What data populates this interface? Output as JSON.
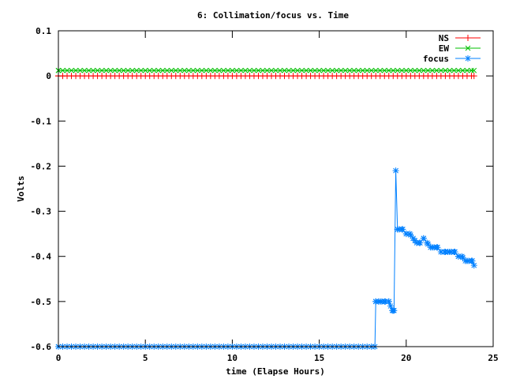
{
  "chart_data": {
    "type": "line",
    "title": "6: Collimation/focus vs. Time",
    "xlabel": "time (Elapse Hours)",
    "ylabel": "Volts",
    "xlim": [
      0,
      25
    ],
    "ylim": [
      -0.6,
      0.1
    ],
    "xticks": [
      0,
      5,
      10,
      15,
      20,
      25
    ],
    "yticks": [
      0.1,
      0,
      -0.1,
      -0.2,
      -0.3,
      -0.4,
      -0.5,
      -0.6
    ],
    "legend_position": "top-right",
    "grid": false,
    "series": [
      {
        "name": "NS",
        "color": "#ff0000",
        "marker": "plus",
        "x": [
          0,
          23.9
        ],
        "y": [
          0.0,
          0.0
        ],
        "sample_interval": 0.25
      },
      {
        "name": "EW",
        "color": "#00c000",
        "marker": "cross",
        "x": [
          0,
          23.9
        ],
        "y": [
          0.012,
          0.012
        ],
        "sample_interval": 0.25
      },
      {
        "name": "focus",
        "color": "#0080ff",
        "marker": "star",
        "x": [
          0,
          18.2,
          18.25,
          18.4,
          18.6,
          18.8,
          19.0,
          19.1,
          19.2,
          19.3,
          19.4,
          19.5,
          19.6,
          19.8,
          20.0,
          20.2,
          20.4,
          20.6,
          20.8,
          21.0,
          21.2,
          21.4,
          21.6,
          21.8,
          22.0,
          22.2,
          22.4,
          22.6,
          22.8,
          23.0,
          23.2,
          23.4,
          23.6,
          23.8,
          23.9
        ],
        "y": [
          -0.6,
          -0.6,
          -0.5,
          -0.5,
          -0.5,
          -0.5,
          -0.5,
          -0.51,
          -0.52,
          -0.52,
          -0.21,
          -0.34,
          -0.34,
          -0.34,
          -0.35,
          -0.35,
          -0.36,
          -0.37,
          -0.37,
          -0.36,
          -0.37,
          -0.38,
          -0.38,
          -0.38,
          -0.39,
          -0.39,
          -0.39,
          -0.39,
          -0.39,
          -0.4,
          -0.4,
          -0.41,
          -0.41,
          -0.41,
          -0.42
        ],
        "sample_interval": 0.25
      }
    ]
  }
}
